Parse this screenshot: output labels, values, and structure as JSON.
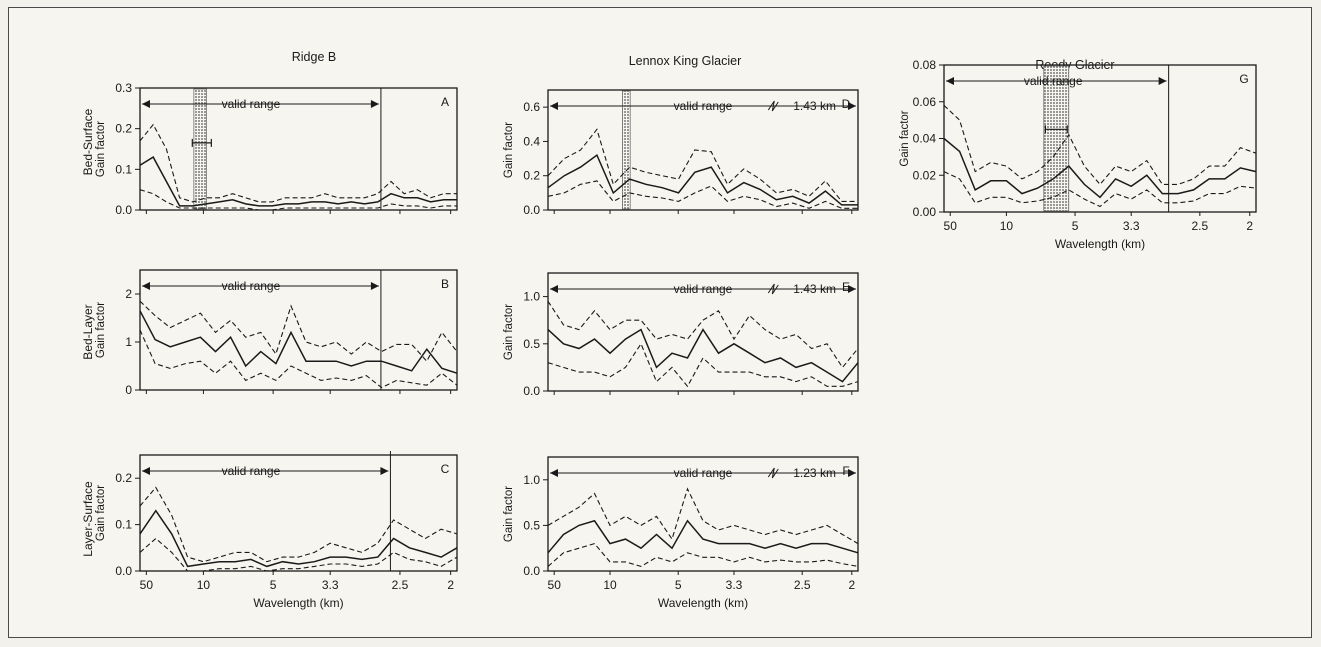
{
  "figure": {
    "col_titles": [
      "Ridge B",
      "Lennox King Glacier",
      "Reedy Glacier"
    ],
    "row_labels": [
      "Bed-Surface",
      "Bed-Layer",
      "Layer-Surface"
    ],
    "ylabel": "Gain factor",
    "xlabel": "Wavelength (km)",
    "valid_range_label": "valid range",
    "colors": {
      "ink": "#1a1a1a",
      "stipple": "#555555",
      "background": "#f6f5f0"
    }
  },
  "chart_data": [
    {
      "id": "A",
      "type": "line",
      "panel_letter": "A",
      "ylim": [
        0,
        0.3
      ],
      "yticks": [
        "0.0",
        "0.1",
        "0.2",
        "0.3"
      ],
      "xticks": [],
      "xlabel": "",
      "valid_range_end_frac": 0.76,
      "break_label": "",
      "shade": [
        0.17,
        0.21
      ],
      "errbar": {
        "x": 0.195,
        "y": 0.165,
        "half_width": 0.03
      },
      "series": [
        {
          "style": "dashed",
          "values": [
            0.17,
            0.21,
            0.15,
            0.03,
            0.02,
            0.03,
            0.03,
            0.04,
            0.03,
            0.02,
            0.02,
            0.03,
            0.03,
            0.03,
            0.04,
            0.03,
            0.03,
            0.03,
            0.04,
            0.07,
            0.04,
            0.05,
            0.03,
            0.04,
            0.04
          ]
        },
        {
          "style": "solid",
          "values": [
            0.11,
            0.13,
            0.07,
            0.01,
            0.01,
            0.015,
            0.02,
            0.025,
            0.015,
            0.01,
            0.01,
            0.015,
            0.015,
            0.02,
            0.02,
            0.015,
            0.02,
            0.015,
            0.02,
            0.04,
            0.03,
            0.03,
            0.02,
            0.025,
            0.025
          ]
        },
        {
          "style": "dashed",
          "values": [
            0.05,
            0.04,
            0.02,
            0.005,
            0.005,
            0.005,
            0.005,
            0.005,
            0.005,
            0.0,
            0.0,
            0.005,
            0.005,
            0.005,
            0.005,
            0.005,
            0.005,
            0.005,
            0.005,
            0.015,
            0.01,
            0.01,
            0.005,
            0.01,
            0.01
          ]
        }
      ]
    },
    {
      "id": "B",
      "type": "line",
      "panel_letter": "B",
      "ylim": [
        0,
        2.5
      ],
      "yticks": [
        "0",
        "1",
        "2"
      ],
      "xticks": [],
      "xlabel": "",
      "valid_range_end_frac": 0.76,
      "break_label": "",
      "shade": null,
      "errbar": null,
      "series": [
        {
          "style": "dashed",
          "values": [
            1.85,
            1.55,
            1.3,
            1.45,
            1.6,
            1.2,
            1.45,
            1.1,
            1.2,
            0.75,
            1.75,
            1.0,
            0.9,
            1.0,
            0.75,
            1.0,
            0.8,
            0.95,
            0.95,
            0.6,
            1.2,
            0.8
          ]
        },
        {
          "style": "solid",
          "values": [
            1.65,
            1.05,
            0.9,
            1.0,
            1.1,
            0.8,
            1.1,
            0.5,
            0.8,
            0.55,
            1.2,
            0.6,
            0.6,
            0.6,
            0.5,
            0.6,
            0.6,
            0.5,
            0.4,
            0.85,
            0.45,
            0.35
          ]
        },
        {
          "style": "dashed",
          "values": [
            1.25,
            0.55,
            0.45,
            0.55,
            0.6,
            0.35,
            0.6,
            0.2,
            0.35,
            0.2,
            0.5,
            0.35,
            0.2,
            0.25,
            0.2,
            0.3,
            0.05,
            0.2,
            0.15,
            0.1,
            0.35,
            0.1
          ]
        }
      ]
    },
    {
      "id": "C",
      "type": "line",
      "panel_letter": "C",
      "ylim": [
        0,
        0.25
      ],
      "yticks": [
        "0.0",
        "0.1",
        "0.2"
      ],
      "xticks": [
        "50",
        "10",
        "5",
        "3.3",
        "2.5",
        "2"
      ],
      "xlabel": "Wavelength (km)",
      "valid_range_end_frac": 0.79,
      "break_label": "",
      "shade": null,
      "errbar": null,
      "series": [
        {
          "style": "dashed",
          "values": [
            0.14,
            0.18,
            0.12,
            0.03,
            0.02,
            0.03,
            0.04,
            0.04,
            0.02,
            0.03,
            0.03,
            0.04,
            0.06,
            0.05,
            0.04,
            0.06,
            0.11,
            0.09,
            0.07,
            0.09,
            0.08
          ]
        },
        {
          "style": "solid",
          "values": [
            0.08,
            0.13,
            0.08,
            0.01,
            0.015,
            0.02,
            0.02,
            0.025,
            0.01,
            0.02,
            0.015,
            0.02,
            0.03,
            0.03,
            0.025,
            0.03,
            0.07,
            0.05,
            0.04,
            0.03,
            0.05
          ]
        },
        {
          "style": "dashed",
          "values": [
            0.04,
            0.07,
            0.04,
            0.0,
            0.0,
            0.005,
            0.005,
            0.01,
            0.0,
            0.005,
            0.005,
            0.01,
            0.015,
            0.015,
            0.01,
            0.015,
            0.04,
            0.025,
            0.02,
            0.01,
            0.03
          ]
        }
      ]
    },
    {
      "id": "D",
      "type": "line",
      "panel_letter": "D",
      "ylim": [
        0,
        0.7
      ],
      "yticks": [
        "0.0",
        "0.2",
        "0.4",
        "0.6"
      ],
      "xticks": [],
      "xlabel": "",
      "valid_range_end_frac": 1.0,
      "break_label": "1.43 km",
      "shade": [
        0.24,
        0.265
      ],
      "errbar": null,
      "series": [
        {
          "style": "dashed",
          "values": [
            0.2,
            0.3,
            0.35,
            0.47,
            0.15,
            0.25,
            0.22,
            0.2,
            0.18,
            0.35,
            0.34,
            0.15,
            0.24,
            0.18,
            0.1,
            0.12,
            0.08,
            0.17,
            0.05,
            0.05
          ]
        },
        {
          "style": "solid",
          "values": [
            0.13,
            0.2,
            0.25,
            0.32,
            0.1,
            0.18,
            0.15,
            0.13,
            0.1,
            0.22,
            0.25,
            0.1,
            0.16,
            0.12,
            0.06,
            0.08,
            0.04,
            0.11,
            0.03,
            0.03
          ]
        },
        {
          "style": "dashed",
          "values": [
            0.08,
            0.1,
            0.15,
            0.17,
            0.05,
            0.1,
            0.08,
            0.07,
            0.05,
            0.1,
            0.14,
            0.05,
            0.08,
            0.06,
            0.02,
            0.04,
            0.01,
            0.05,
            0.01,
            0.01
          ]
        }
      ]
    },
    {
      "id": "E",
      "type": "line",
      "panel_letter": "E",
      "ylim": [
        0,
        1.25
      ],
      "yticks": [
        "0.0",
        "0.5",
        "1.0"
      ],
      "xticks": [],
      "xlabel": "",
      "valid_range_end_frac": 1.0,
      "break_label": "1.43 km",
      "shade": null,
      "errbar": null,
      "series": [
        {
          "style": "dashed",
          "values": [
            0.95,
            0.7,
            0.65,
            0.85,
            0.65,
            0.75,
            0.75,
            0.55,
            0.6,
            0.55,
            0.75,
            0.85,
            0.55,
            0.8,
            0.65,
            0.55,
            0.6,
            0.45,
            0.5,
            0.25,
            0.45
          ]
        },
        {
          "style": "solid",
          "values": [
            0.65,
            0.5,
            0.45,
            0.55,
            0.4,
            0.55,
            0.65,
            0.25,
            0.4,
            0.35,
            0.65,
            0.4,
            0.5,
            0.4,
            0.3,
            0.35,
            0.25,
            0.3,
            0.2,
            0.1,
            0.3
          ]
        },
        {
          "style": "dashed",
          "values": [
            0.3,
            0.25,
            0.2,
            0.2,
            0.15,
            0.25,
            0.5,
            0.1,
            0.25,
            0.05,
            0.35,
            0.2,
            0.2,
            0.2,
            0.15,
            0.15,
            0.1,
            0.15,
            0.05,
            0.05,
            0.1
          ]
        }
      ]
    },
    {
      "id": "F",
      "type": "line",
      "panel_letter": "F",
      "ylim": [
        0,
        1.25
      ],
      "yticks": [
        "0.0",
        "0.5",
        "1.0"
      ],
      "xticks": [
        "50",
        "10",
        "5",
        "3.3",
        "2.5",
        "2"
      ],
      "xlabel": "Wavelength (km)",
      "valid_range_end_frac": 1.0,
      "break_label": "1.23 km",
      "shade": null,
      "errbar": null,
      "series": [
        {
          "style": "dashed",
          "values": [
            0.5,
            0.6,
            0.7,
            0.85,
            0.5,
            0.6,
            0.5,
            0.6,
            0.35,
            0.9,
            0.55,
            0.45,
            0.5,
            0.45,
            0.4,
            0.45,
            0.4,
            0.45,
            0.5,
            0.4,
            0.3
          ]
        },
        {
          "style": "solid",
          "values": [
            0.2,
            0.4,
            0.5,
            0.55,
            0.3,
            0.35,
            0.25,
            0.4,
            0.25,
            0.55,
            0.35,
            0.3,
            0.3,
            0.3,
            0.25,
            0.3,
            0.25,
            0.3,
            0.3,
            0.25,
            0.2
          ]
        },
        {
          "style": "dashed",
          "values": [
            0.05,
            0.2,
            0.25,
            0.3,
            0.1,
            0.1,
            0.05,
            0.15,
            0.1,
            0.2,
            0.15,
            0.15,
            0.1,
            0.15,
            0.1,
            0.12,
            0.1,
            0.1,
            0.12,
            0.08,
            0.05
          ]
        }
      ]
    },
    {
      "id": "G",
      "type": "line",
      "panel_letter": "G",
      "ylim": [
        0,
        0.08
      ],
      "yticks": [
        "0.00",
        "0.02",
        "0.04",
        "0.06",
        "0.08"
      ],
      "xticks": [
        "50",
        "10",
        "5",
        "3.3",
        "2.5",
        "2"
      ],
      "xlabel": "Wavelength (km)",
      "valid_range_end_frac": 0.72,
      "break_label": "",
      "shade": [
        0.32,
        0.4
      ],
      "errbar": {
        "x": 0.36,
        "y": 0.045,
        "half_width": 0.035
      },
      "series": [
        {
          "style": "dashed",
          "values": [
            0.058,
            0.05,
            0.022,
            0.027,
            0.025,
            0.018,
            0.022,
            0.03,
            0.042,
            0.025,
            0.015,
            0.025,
            0.022,
            0.028,
            0.015,
            0.015,
            0.018,
            0.025,
            0.025,
            0.035,
            0.032
          ]
        },
        {
          "style": "solid",
          "values": [
            0.04,
            0.033,
            0.012,
            0.017,
            0.017,
            0.01,
            0.013,
            0.018,
            0.025,
            0.015,
            0.008,
            0.018,
            0.014,
            0.02,
            0.01,
            0.01,
            0.012,
            0.018,
            0.018,
            0.024,
            0.022
          ]
        },
        {
          "style": "dashed",
          "values": [
            0.022,
            0.018,
            0.005,
            0.008,
            0.008,
            0.005,
            0.006,
            0.008,
            0.012,
            0.007,
            0.003,
            0.01,
            0.007,
            0.012,
            0.005,
            0.005,
            0.006,
            0.01,
            0.01,
            0.014,
            0.013
          ]
        }
      ]
    }
  ]
}
